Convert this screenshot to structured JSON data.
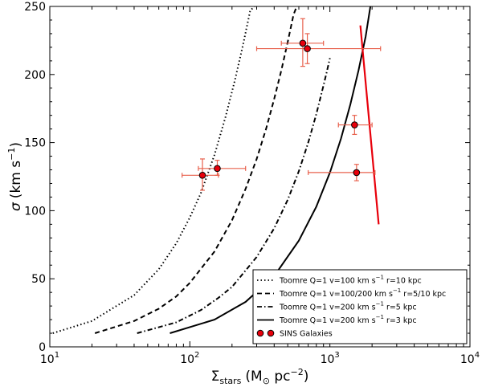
{
  "chart_data": {
    "type": "scatter",
    "title": "",
    "xlabel": {
      "symbol": "Σ",
      "sub": "stars",
      "units_pre": "(M",
      "units_sun": "⊙",
      "units_post": " pc",
      "units_exp": "−2",
      "units_close": ")"
    },
    "ylabel": {
      "symbol": "σ",
      "units_pre": "(km s",
      "units_exp": "−1",
      "units_close": ")"
    },
    "x_scale": "log",
    "xlim": [
      10,
      10000
    ],
    "ylim": [
      0,
      250
    ],
    "x_ticks": [
      {
        "value": 10,
        "base": "10",
        "exp": "1"
      },
      {
        "value": 100,
        "base": "10",
        "exp": "2"
      },
      {
        "value": 1000,
        "base": "10",
        "exp": "3"
      },
      {
        "value": 10000,
        "base": "10",
        "exp": "4"
      }
    ],
    "y_ticks": [
      {
        "value": 0,
        "label": "0"
      },
      {
        "value": 50,
        "label": "50"
      },
      {
        "value": 100,
        "label": "100"
      },
      {
        "value": 150,
        "label": "150"
      },
      {
        "value": 200,
        "label": "200"
      },
      {
        "value": 250,
        "label": "250"
      }
    ],
    "grid": false,
    "legend_position": "lower-right",
    "series": [
      {
        "name": "toomre-v100-r10",
        "legend_pre": "Toomre Q=1 v=100 km s",
        "legend_exp": "−1",
        "legend_post": " r=10 kpc",
        "style": "dotted",
        "color": "#000000",
        "x": [
          10.5,
          20,
          40,
          60,
          80,
          100,
          120,
          150,
          180,
          210,
          240,
          270,
          290
        ],
        "y": [
          10,
          19,
          38,
          57,
          76,
          95,
          113,
          141,
          169,
          196,
          222,
          247,
          250
        ]
      },
      {
        "name": "toomre-v100-200-r5-10",
        "legend_pre": "Toomre Q=1 v=100/200 km s",
        "legend_exp": "−1",
        "legend_post": " r=5/10 kpc",
        "style": "dashed",
        "color": "#000000",
        "x": [
          21,
          40,
          60,
          80,
          100,
          150,
          200,
          250,
          300,
          350,
          400,
          450,
          500,
          550,
          590
        ],
        "y": [
          10,
          19,
          28,
          37,
          47,
          70,
          93,
          116,
          138,
          160,
          182,
          203,
          224,
          244,
          252
        ]
      },
      {
        "name": "toomre-v200-r5",
        "legend_pre": "Toomre Q=1 v=200 km s",
        "legend_exp": "−1",
        "legend_post": " r=5 kpc",
        "style": "dashdot",
        "color": "#000000",
        "x": [
          42,
          80,
          120,
          160,
          200,
          300,
          400,
          500,
          600,
          700,
          800,
          900,
          950,
          1000
        ],
        "y": [
          10,
          18,
          27,
          36,
          44,
          66,
          87,
          108,
          129,
          150,
          171,
          192,
          202,
          212
        ]
      },
      {
        "name": "toomre-v200-r3",
        "legend_pre": "Toomre Q=1 v=200 km s",
        "legend_exp": "−1",
        "legend_post": " r=3 kpc",
        "style": "solid",
        "color": "#000000",
        "x": [
          72,
          150,
          250,
          400,
          600,
          800,
          1000,
          1200,
          1400,
          1600,
          1800,
          1960
        ],
        "y": [
          10,
          20,
          33,
          52,
          78,
          103,
          128,
          153,
          178,
          203,
          228,
          252
        ]
      },
      {
        "name": "red-line",
        "style": "solid",
        "color": "#e8000b",
        "x": [
          1650,
          2230
        ],
        "y": [
          236,
          90
        ]
      }
    ],
    "points": {
      "name": "SINS Galaxies",
      "legend_label": "SINS Galaxies",
      "color": "#e8000b",
      "data": [
        {
          "x": 123,
          "y": 126,
          "xerr": [
            88,
            160
          ],
          "yerr": [
            115,
            138
          ]
        },
        {
          "x": 157,
          "y": 131,
          "xerr": [
            115,
            250
          ],
          "yerr": [
            126,
            137
          ]
        },
        {
          "x": 640,
          "y": 223,
          "xerr": [
            450,
            900
          ],
          "yerr": [
            206,
            241
          ]
        },
        {
          "x": 690,
          "y": 219,
          "xerr": [
            300,
            2300
          ],
          "yerr": [
            208,
            230
          ]
        },
        {
          "x": 1500,
          "y": 163,
          "xerr": [
            1150,
            2000
          ],
          "yerr": [
            156,
            170
          ]
        },
        {
          "x": 1550,
          "y": 128,
          "xerr": [
            700,
            2100
          ],
          "yerr": [
            122,
            134
          ]
        }
      ]
    }
  }
}
